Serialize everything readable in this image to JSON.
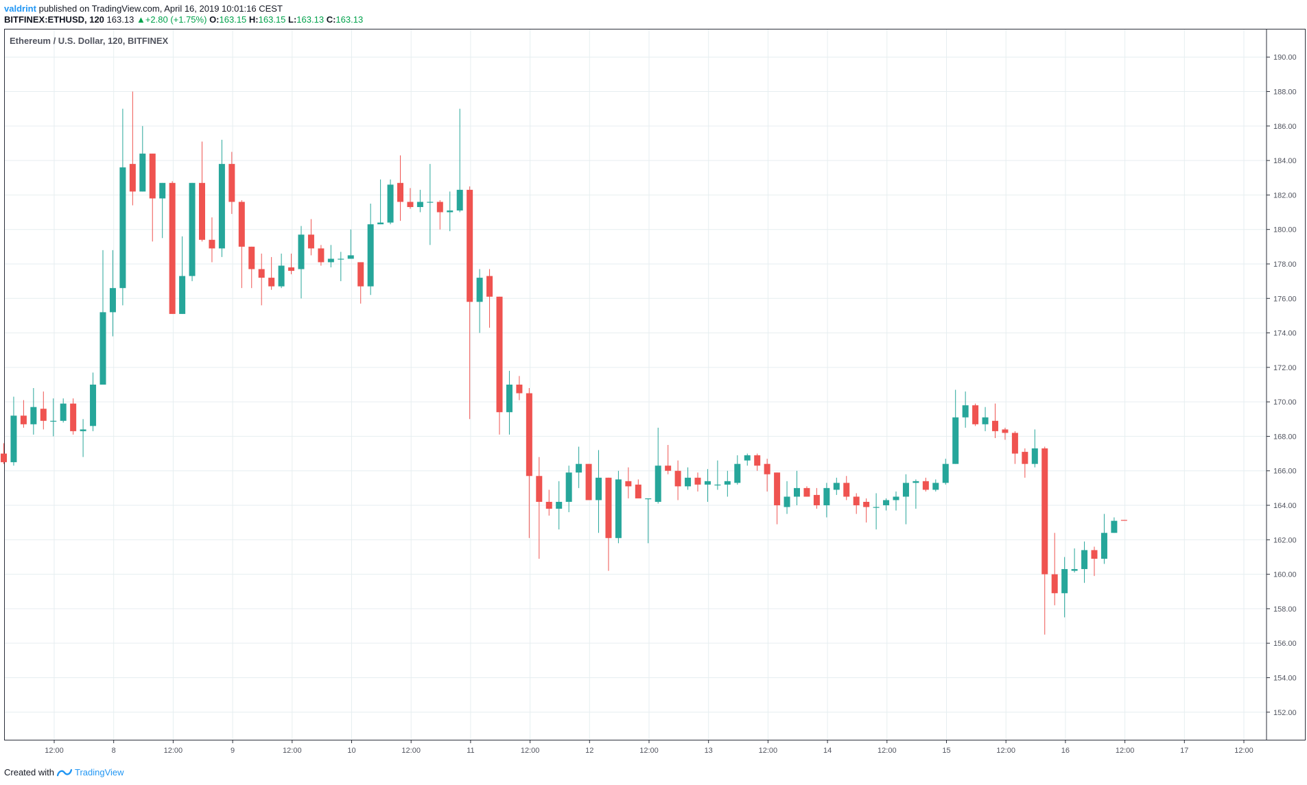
{
  "header": {
    "author": "valdrint",
    "published_text": "published on TradingView.com, April 16, 2019 10:01:16 CEST",
    "symbol": "BITFINEX:ETHUSD, 120",
    "last_price": "163.13",
    "change_arrow": "▲",
    "change": "+2.80 (+1.75%)",
    "o_label": "O:",
    "o_value": "163.15",
    "h_label": "H:",
    "h_value": "163.15",
    "l_label": "L:",
    "l_value": "163.13",
    "c_label": "C:",
    "c_value": "163.13"
  },
  "footer": {
    "created_with": "Created with",
    "brand": "TradingView"
  },
  "colors": {
    "up": "#26a69a",
    "down": "#ef5350",
    "grid": "#e6eef0",
    "axis_text": "#50535e"
  },
  "chart_data": {
    "type": "candlestick",
    "title": "Ethereum / U.S. Dollar, 120, BITFINEX",
    "ylim": [
      150.4,
      191.6
    ],
    "yticks": [
      "152.00",
      "154.00",
      "156.00",
      "158.00",
      "160.00",
      "162.00",
      "164.00",
      "166.00",
      "168.00",
      "170.00",
      "172.00",
      "174.00",
      "176.00",
      "178.00",
      "180.00",
      "182.00",
      "184.00",
      "186.00",
      "188.00",
      "190.00"
    ],
    "xticks": [
      "12:00",
      "8",
      "12:00",
      "9",
      "12:00",
      "10",
      "12:00",
      "11",
      "12:00",
      "12",
      "12:00",
      "13",
      "12:00",
      "14",
      "12:00",
      "15",
      "12:00",
      "16",
      "12:00",
      "17",
      "12:00"
    ],
    "grid": true,
    "candles": [
      {
        "o": 167.0,
        "h": 167.6,
        "l": 166.4,
        "c": 166.5
      },
      {
        "o": 166.5,
        "h": 170.3,
        "l": 166.3,
        "c": 169.2
      },
      {
        "o": 169.2,
        "h": 170.1,
        "l": 168.5,
        "c": 168.7
      },
      {
        "o": 168.7,
        "h": 170.8,
        "l": 168.1,
        "c": 169.7
      },
      {
        "o": 169.6,
        "h": 170.6,
        "l": 168.4,
        "c": 168.9
      },
      {
        "o": 168.9,
        "h": 170.2,
        "l": 168.0,
        "c": 168.9
      },
      {
        "o": 168.9,
        "h": 170.2,
        "l": 168.8,
        "c": 169.9
      },
      {
        "o": 169.9,
        "h": 170.2,
        "l": 168.1,
        "c": 168.3
      },
      {
        "o": 168.3,
        "h": 169.0,
        "l": 166.8,
        "c": 168.4
      },
      {
        "o": 168.6,
        "h": 171.7,
        "l": 168.3,
        "c": 171.0
      },
      {
        "o": 171.0,
        "h": 178.8,
        "l": 171.0,
        "c": 175.2
      },
      {
        "o": 175.2,
        "h": 178.8,
        "l": 173.8,
        "c": 176.6
      },
      {
        "o": 176.6,
        "h": 187.0,
        "l": 175.6,
        "c": 183.6
      },
      {
        "o": 183.8,
        "h": 188.0,
        "l": 181.4,
        "c": 182.2
      },
      {
        "o": 182.2,
        "h": 186.0,
        "l": 182.2,
        "c": 184.4
      },
      {
        "o": 184.4,
        "h": 184.4,
        "l": 179.3,
        "c": 181.8
      },
      {
        "o": 181.8,
        "h": 182.7,
        "l": 179.5,
        "c": 182.7
      },
      {
        "o": 182.7,
        "h": 182.8,
        "l": 175.1,
        "c": 175.1
      },
      {
        "o": 175.1,
        "h": 179.6,
        "l": 175.1,
        "c": 177.3
      },
      {
        "o": 177.3,
        "h": 182.7,
        "l": 177.0,
        "c": 182.7
      },
      {
        "o": 182.7,
        "h": 185.1,
        "l": 179.3,
        "c": 179.4
      },
      {
        "o": 179.4,
        "h": 180.7,
        "l": 178.1,
        "c": 178.9
      },
      {
        "o": 178.9,
        "h": 185.2,
        "l": 178.4,
        "c": 183.8
      },
      {
        "o": 183.8,
        "h": 184.5,
        "l": 180.9,
        "c": 181.6
      },
      {
        "o": 181.6,
        "h": 181.7,
        "l": 176.6,
        "c": 179.0
      },
      {
        "o": 179.0,
        "h": 179.0,
        "l": 176.6,
        "c": 177.7
      },
      {
        "o": 177.7,
        "h": 178.6,
        "l": 175.6,
        "c": 177.2
      },
      {
        "o": 177.2,
        "h": 178.4,
        "l": 176.5,
        "c": 176.7
      },
      {
        "o": 176.7,
        "h": 178.6,
        "l": 176.6,
        "c": 177.9
      },
      {
        "o": 177.8,
        "h": 178.6,
        "l": 177.4,
        "c": 177.6
      },
      {
        "o": 177.7,
        "h": 180.2,
        "l": 176.0,
        "c": 179.7
      },
      {
        "o": 179.7,
        "h": 180.6,
        "l": 178.5,
        "c": 178.9
      },
      {
        "o": 178.9,
        "h": 179.1,
        "l": 177.9,
        "c": 178.1
      },
      {
        "o": 178.1,
        "h": 179.1,
        "l": 177.8,
        "c": 178.3
      },
      {
        "o": 178.3,
        "h": 178.7,
        "l": 177.0,
        "c": 178.3
      },
      {
        "o": 178.3,
        "h": 180.0,
        "l": 178.3,
        "c": 178.5
      },
      {
        "o": 178.1,
        "h": 178.1,
        "l": 175.7,
        "c": 176.7
      },
      {
        "o": 176.7,
        "h": 181.5,
        "l": 176.2,
        "c": 180.3
      },
      {
        "o": 180.3,
        "h": 182.9,
        "l": 180.3,
        "c": 180.4
      },
      {
        "o": 180.4,
        "h": 182.9,
        "l": 180.3,
        "c": 182.6
      },
      {
        "o": 182.7,
        "h": 184.3,
        "l": 180.5,
        "c": 181.6
      },
      {
        "o": 181.6,
        "h": 182.4,
        "l": 181.2,
        "c": 181.3
      },
      {
        "o": 181.3,
        "h": 182.3,
        "l": 181.0,
        "c": 181.6
      },
      {
        "o": 181.6,
        "h": 183.8,
        "l": 179.1,
        "c": 181.6
      },
      {
        "o": 181.6,
        "h": 181.7,
        "l": 180.0,
        "c": 181.0
      },
      {
        "o": 181.0,
        "h": 182.2,
        "l": 179.9,
        "c": 181.1
      },
      {
        "o": 181.1,
        "h": 187.0,
        "l": 181.0,
        "c": 182.3
      },
      {
        "o": 182.3,
        "h": 182.5,
        "l": 169.0,
        "c": 175.8
      },
      {
        "o": 175.8,
        "h": 177.7,
        "l": 174.0,
        "c": 177.2
      },
      {
        "o": 177.3,
        "h": 177.7,
        "l": 174.3,
        "c": 176.1
      },
      {
        "o": 176.1,
        "h": 176.1,
        "l": 168.1,
        "c": 169.4
      },
      {
        "o": 169.4,
        "h": 171.8,
        "l": 168.1,
        "c": 171.0
      },
      {
        "o": 171.0,
        "h": 171.5,
        "l": 170.1,
        "c": 170.5
      },
      {
        "o": 170.5,
        "h": 170.8,
        "l": 162.1,
        "c": 165.7
      },
      {
        "o": 165.7,
        "h": 166.8,
        "l": 160.9,
        "c": 164.2
      },
      {
        "o": 164.2,
        "h": 164.9,
        "l": 163.4,
        "c": 163.8
      },
      {
        "o": 163.8,
        "h": 165.4,
        "l": 162.6,
        "c": 164.2
      },
      {
        "o": 164.2,
        "h": 166.3,
        "l": 163.6,
        "c": 165.9
      },
      {
        "o": 165.9,
        "h": 167.4,
        "l": 165.0,
        "c": 166.4
      },
      {
        "o": 166.4,
        "h": 166.4,
        "l": 164.3,
        "c": 164.3
      },
      {
        "o": 164.3,
        "h": 167.2,
        "l": 162.4,
        "c": 165.6
      },
      {
        "o": 165.6,
        "h": 165.6,
        "l": 160.2,
        "c": 162.1
      },
      {
        "o": 162.1,
        "h": 166.0,
        "l": 161.8,
        "c": 165.5
      },
      {
        "o": 165.4,
        "h": 166.2,
        "l": 164.4,
        "c": 165.1
      },
      {
        "o": 165.2,
        "h": 165.5,
        "l": 164.6,
        "c": 164.4
      },
      {
        "o": 164.4,
        "h": 164.4,
        "l": 161.8,
        "c": 164.4
      },
      {
        "o": 164.2,
        "h": 168.5,
        "l": 164.1,
        "c": 166.3
      },
      {
        "o": 166.3,
        "h": 167.5,
        "l": 165.8,
        "c": 166.0
      },
      {
        "o": 166.0,
        "h": 166.6,
        "l": 164.3,
        "c": 165.1
      },
      {
        "o": 165.1,
        "h": 166.2,
        "l": 164.9,
        "c": 165.6
      },
      {
        "o": 165.6,
        "h": 165.9,
        "l": 164.8,
        "c": 165.2
      },
      {
        "o": 165.2,
        "h": 166.1,
        "l": 164.2,
        "c": 165.4
      },
      {
        "o": 165.2,
        "h": 166.6,
        "l": 164.9,
        "c": 165.2
      },
      {
        "o": 165.2,
        "h": 166.0,
        "l": 164.5,
        "c": 165.4
      },
      {
        "o": 165.3,
        "h": 166.9,
        "l": 165.2,
        "c": 166.4
      },
      {
        "o": 166.6,
        "h": 167.0,
        "l": 166.3,
        "c": 166.9
      },
      {
        "o": 166.9,
        "h": 167.0,
        "l": 166.0,
        "c": 166.3
      },
      {
        "o": 166.4,
        "h": 166.7,
        "l": 164.8,
        "c": 165.8
      },
      {
        "o": 165.9,
        "h": 165.9,
        "l": 162.9,
        "c": 164.0
      },
      {
        "o": 163.9,
        "h": 165.4,
        "l": 163.5,
        "c": 164.5
      },
      {
        "o": 164.5,
        "h": 166.0,
        "l": 164.0,
        "c": 165.0
      },
      {
        "o": 165.0,
        "h": 165.1,
        "l": 164.5,
        "c": 164.5
      },
      {
        "o": 164.6,
        "h": 165.0,
        "l": 163.8,
        "c": 164.0
      },
      {
        "o": 164.0,
        "h": 165.3,
        "l": 163.3,
        "c": 165.0
      },
      {
        "o": 164.9,
        "h": 165.6,
        "l": 164.6,
        "c": 165.3
      },
      {
        "o": 165.3,
        "h": 165.7,
        "l": 164.3,
        "c": 164.5
      },
      {
        "o": 164.5,
        "h": 164.7,
        "l": 163.5,
        "c": 164.0
      },
      {
        "o": 164.2,
        "h": 164.4,
        "l": 163.0,
        "c": 163.9
      },
      {
        "o": 163.9,
        "h": 164.7,
        "l": 162.6,
        "c": 163.9
      },
      {
        "o": 164.0,
        "h": 164.4,
        "l": 163.7,
        "c": 164.3
      },
      {
        "o": 164.3,
        "h": 164.8,
        "l": 163.7,
        "c": 164.5
      },
      {
        "o": 164.5,
        "h": 165.8,
        "l": 162.9,
        "c": 165.3
      },
      {
        "o": 165.3,
        "h": 165.5,
        "l": 163.8,
        "c": 165.4
      },
      {
        "o": 165.4,
        "h": 165.6,
        "l": 164.8,
        "c": 164.9
      },
      {
        "o": 164.9,
        "h": 165.5,
        "l": 164.8,
        "c": 165.3
      },
      {
        "o": 165.3,
        "h": 166.7,
        "l": 165.2,
        "c": 166.4
      },
      {
        "o": 166.4,
        "h": 170.7,
        "l": 166.4,
        "c": 169.1
      },
      {
        "o": 169.1,
        "h": 170.6,
        "l": 168.5,
        "c": 169.8
      },
      {
        "o": 169.8,
        "h": 169.9,
        "l": 168.6,
        "c": 168.7
      },
      {
        "o": 168.7,
        "h": 169.7,
        "l": 168.3,
        "c": 169.1
      },
      {
        "o": 168.9,
        "h": 169.9,
        "l": 167.9,
        "c": 168.3
      },
      {
        "o": 168.4,
        "h": 168.5,
        "l": 167.8,
        "c": 168.2
      },
      {
        "o": 168.2,
        "h": 168.3,
        "l": 166.4,
        "c": 167.0
      },
      {
        "o": 167.1,
        "h": 167.3,
        "l": 165.6,
        "c": 166.4
      },
      {
        "o": 166.4,
        "h": 168.4,
        "l": 166.2,
        "c": 167.3
      },
      {
        "o": 167.3,
        "h": 167.4,
        "l": 156.5,
        "c": 160.0
      },
      {
        "o": 160.0,
        "h": 162.4,
        "l": 158.2,
        "c": 158.9
      },
      {
        "o": 158.9,
        "h": 161.0,
        "l": 157.5,
        "c": 160.3
      },
      {
        "o": 160.2,
        "h": 161.5,
        "l": 160.1,
        "c": 160.3
      },
      {
        "o": 160.3,
        "h": 161.9,
        "l": 159.5,
        "c": 161.4
      },
      {
        "o": 161.4,
        "h": 161.6,
        "l": 159.9,
        "c": 160.9
      },
      {
        "o": 160.9,
        "h": 163.5,
        "l": 160.6,
        "c": 162.4
      },
      {
        "o": 162.4,
        "h": 163.3,
        "l": 162.4,
        "c": 163.1
      },
      {
        "o": 163.15,
        "h": 163.15,
        "l": 163.13,
        "c": 163.13
      }
    ]
  }
}
